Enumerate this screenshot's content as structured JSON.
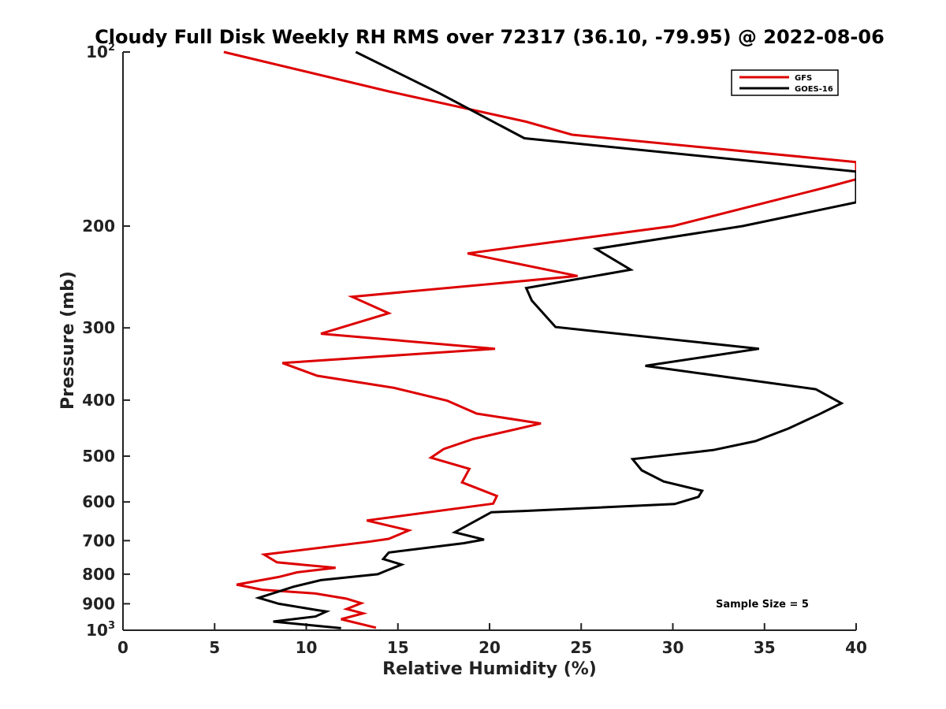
{
  "chart_data": {
    "type": "line",
    "title": "Cloudy Full Disk Weekly RH RMS over 72317 (36.10, -79.95) @ 2022-08-06",
    "xlabel": "Relative Humidity (%)",
    "ylabel": "Pressure (mb)",
    "xlim": [
      0,
      40
    ],
    "ylim": [
      100,
      1000
    ],
    "y_scale": "log",
    "y_reversed": true,
    "grid": false,
    "legend_location": "top-right",
    "x_ticks": [
      "0",
      "5",
      "10",
      "15",
      "20",
      "25",
      "30",
      "35",
      "40"
    ],
    "y_ticks": [
      {
        "value": 100,
        "label": "10",
        "exp": "2"
      },
      {
        "value": 200,
        "label": "200",
        "exp": ""
      },
      {
        "value": 300,
        "label": "300",
        "exp": ""
      },
      {
        "value": 400,
        "label": "400",
        "exp": ""
      },
      {
        "value": 500,
        "label": "500",
        "exp": ""
      },
      {
        "value": 600,
        "label": "600",
        "exp": ""
      },
      {
        "value": 700,
        "label": "700",
        "exp": ""
      },
      {
        "value": 800,
        "label": "800",
        "exp": ""
      },
      {
        "value": 900,
        "label": "900",
        "exp": ""
      },
      {
        "value": 1000,
        "label": "10",
        "exp": "3"
      }
    ],
    "series": [
      {
        "name": "GFS",
        "color": "#dd0000",
        "points": [
          [
            5.5,
            100
          ],
          [
            14.5,
            117
          ],
          [
            22,
            132
          ],
          [
            24.5,
            139
          ],
          [
            40,
            155
          ],
          [
            40,
            166
          ],
          [
            38.5,
            171
          ],
          [
            30,
            200
          ],
          [
            18.8,
            223
          ],
          [
            24.8,
            244
          ],
          [
            12.5,
            265
          ],
          [
            14.5,
            283
          ],
          [
            10.8,
            307
          ],
          [
            20.3,
            326
          ],
          [
            8.7,
            345
          ],
          [
            10.6,
            363
          ],
          [
            14.8,
            381
          ],
          [
            17.7,
            401
          ],
          [
            19.3,
            422
          ],
          [
            22.8,
            439
          ],
          [
            19.1,
            467
          ],
          [
            17.5,
            486
          ],
          [
            16.8,
            503
          ],
          [
            18.9,
            526
          ],
          [
            18.5,
            555
          ],
          [
            20.4,
            586
          ],
          [
            20.2,
            604
          ],
          [
            13.3,
            646
          ],
          [
            15.6,
            672
          ],
          [
            14.5,
            695
          ],
          [
            13.4,
            703
          ],
          [
            7.7,
            740
          ],
          [
            8.4,
            763
          ],
          [
            11.6,
            780
          ],
          [
            9.5,
            794
          ],
          [
            8.5,
            809
          ],
          [
            6.2,
            834
          ],
          [
            7.6,
            851
          ],
          [
            10.5,
            864
          ],
          [
            12.2,
            882
          ],
          [
            13,
            898
          ],
          [
            12.2,
            919
          ],
          [
            13.1,
            935
          ],
          [
            11.9,
            957
          ],
          [
            13.8,
            990
          ]
        ]
      },
      {
        "name": "GOES-16",
        "color": "#000000",
        "points": [
          [
            12.7,
            100
          ],
          [
            17.3,
            118
          ],
          [
            21.9,
            141
          ],
          [
            40,
            161
          ],
          [
            40,
            182
          ],
          [
            33.8,
            200
          ],
          [
            25.8,
            219
          ],
          [
            27.7,
            238
          ],
          [
            22,
            256
          ],
          [
            22.3,
            269
          ],
          [
            23.6,
            299
          ],
          [
            34.7,
            326
          ],
          [
            28.5,
            349
          ],
          [
            37.8,
            383
          ],
          [
            39.2,
            405
          ],
          [
            38,
            423
          ],
          [
            36.3,
            448
          ],
          [
            34.5,
            471
          ],
          [
            32.2,
            488
          ],
          [
            27.8,
            506
          ],
          [
            28.3,
            529
          ],
          [
            29.5,
            553
          ],
          [
            31.6,
            574
          ],
          [
            31.4,
            588
          ],
          [
            30.1,
            605
          ],
          [
            21.9,
            622
          ],
          [
            20.1,
            625
          ],
          [
            18.1,
            677
          ],
          [
            19.7,
            697
          ],
          [
            18.6,
            707
          ],
          [
            14.5,
            734
          ],
          [
            14.2,
            753
          ],
          [
            15.2,
            770
          ],
          [
            14.4,
            788
          ],
          [
            13.9,
            800
          ],
          [
            10.8,
            819
          ],
          [
            9.3,
            841
          ],
          [
            8.5,
            857
          ],
          [
            7.4,
            879
          ],
          [
            8.5,
            900
          ],
          [
            10.6,
            923
          ],
          [
            11.1,
            928
          ],
          [
            10.5,
            947
          ],
          [
            8.2,
            966
          ],
          [
            11.9,
            992
          ]
        ]
      }
    ],
    "annotations": [
      "Sample Size = 5"
    ]
  }
}
